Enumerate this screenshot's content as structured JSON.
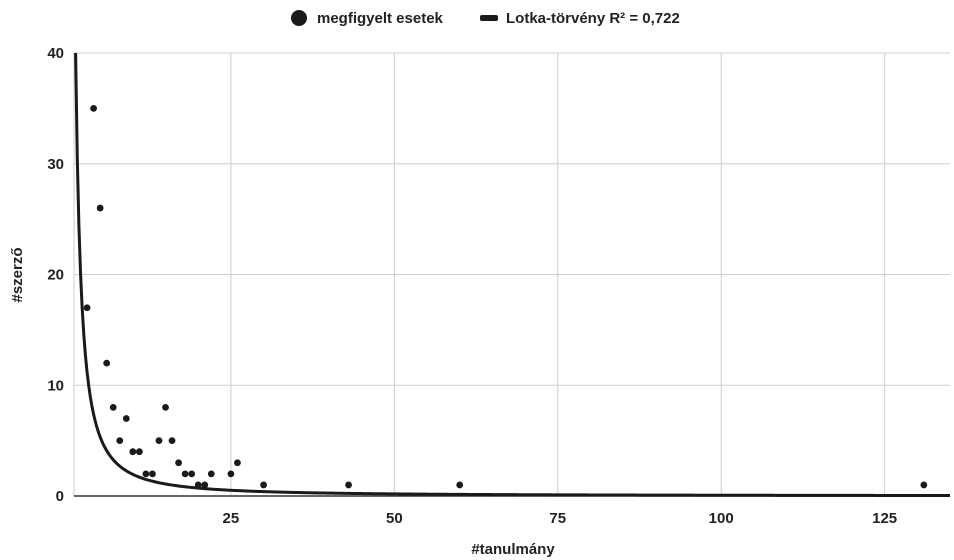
{
  "legend": {
    "scatter_label": "megfigyelt esetek",
    "line_label": "Lotka-törvény R² = 0,722"
  },
  "chart_data": {
    "type": "scatter",
    "xlabel": "#tanulmány",
    "ylabel": "#szerző",
    "xlim": [
      1,
      135
    ],
    "ylim": [
      0,
      40
    ],
    "xticks": [
      25,
      50,
      75,
      100,
      125
    ],
    "yticks": [
      0,
      10,
      20,
      30,
      40
    ],
    "grid": true,
    "legend_position": "top-center",
    "series": [
      {
        "name": "megfigyelt esetek",
        "kind": "scatter",
        "points": [
          [
            3,
            17
          ],
          [
            4,
            35
          ],
          [
            5,
            26
          ],
          [
            6,
            12
          ],
          [
            7,
            8
          ],
          [
            8,
            5
          ],
          [
            9,
            7
          ],
          [
            10,
            4
          ],
          [
            11,
            4
          ],
          [
            12,
            2
          ],
          [
            13,
            2
          ],
          [
            14,
            5
          ],
          [
            15,
            8
          ],
          [
            16,
            5
          ],
          [
            17,
            3
          ],
          [
            18,
            2
          ],
          [
            19,
            2
          ],
          [
            20,
            1
          ],
          [
            21,
            1
          ],
          [
            22,
            2
          ],
          [
            25,
            2
          ],
          [
            26,
            3
          ],
          [
            30,
            1
          ],
          [
            43,
            1
          ],
          [
            60,
            1
          ],
          [
            131,
            1
          ]
        ],
        "color": "#1a1a1a"
      },
      {
        "name": "Lotka-törvény R² = 0,722",
        "kind": "line",
        "model": {
          "coefficient": 55,
          "exponent": 1.45
        },
        "color": "#1a1a1a"
      }
    ]
  }
}
